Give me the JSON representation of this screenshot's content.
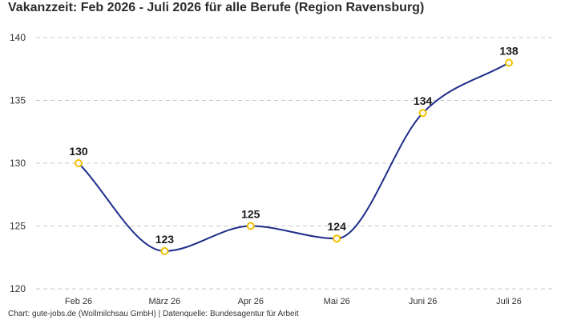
{
  "chart_data": {
    "type": "line",
    "title": "Vakanzzeit: Feb 2026 - Juli 2026 für alle Berufe (Region Ravensburg)",
    "categories": [
      "Feb 26",
      "März 26",
      "Apr 26",
      "Mai 26",
      "Juni 26",
      "Juli 26"
    ],
    "values": [
      130,
      123,
      125,
      124,
      134,
      138
    ],
    "data_labels": [
      "130",
      "123",
      "125",
      "124",
      "134",
      "138"
    ],
    "ylim": [
      120,
      140
    ],
    "yticks": [
      120,
      125,
      130,
      135,
      140
    ],
    "ytick_labels": [
      "120",
      "125",
      "130",
      "135",
      "140"
    ],
    "grid": true,
    "xlabel": "",
    "ylabel": "",
    "line_color": "#1f2d8a",
    "marker_color": "#f2c200",
    "marker_fill": "#ffffff"
  },
  "footer": {
    "credit": "Chart: gute-jobs.de (Wollmilchsau GmbH) | Datenquelle: Bundesagentur für Arbeit"
  }
}
